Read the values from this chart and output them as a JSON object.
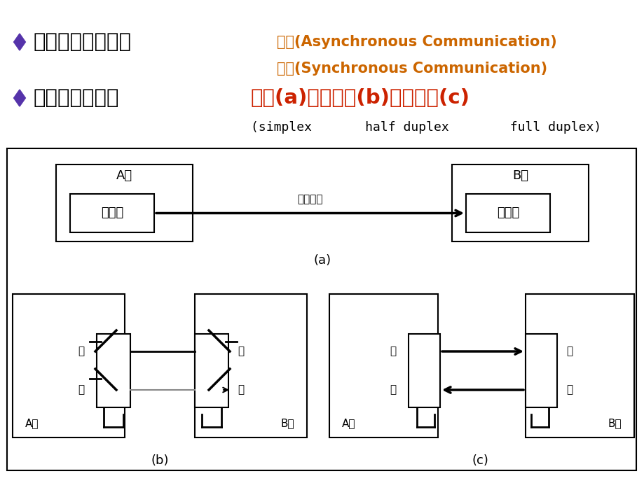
{
  "bg_color": "#ffffff",
  "black": "#000000",
  "red_color": "#cc2200",
  "orange_color": "#cc6600",
  "bullet_color": "#5533aa",
  "line1_black": "串行通信的分类：",
  "line1_orange": "异步(Asynchronous Communication)",
  "line2_orange": "同步(Synchronous Communication)",
  "line3_black1": "串行通信制式：",
  "line3_red": "单工(a)、半双工(b)和全双工(c)",
  "line4_black": "(simplex       half duplex        full duplex)",
  "label_a": "A站",
  "label_b": "B站",
  "label_fasongqi": "发送器",
  "label_jieshouqi": "接收器",
  "label_dangogtongxin": "单工通信",
  "label_fa": "发",
  "label_shou": "收",
  "label_a_label": "(a)",
  "label_b_label": "(b)",
  "label_c_label": "(c)"
}
